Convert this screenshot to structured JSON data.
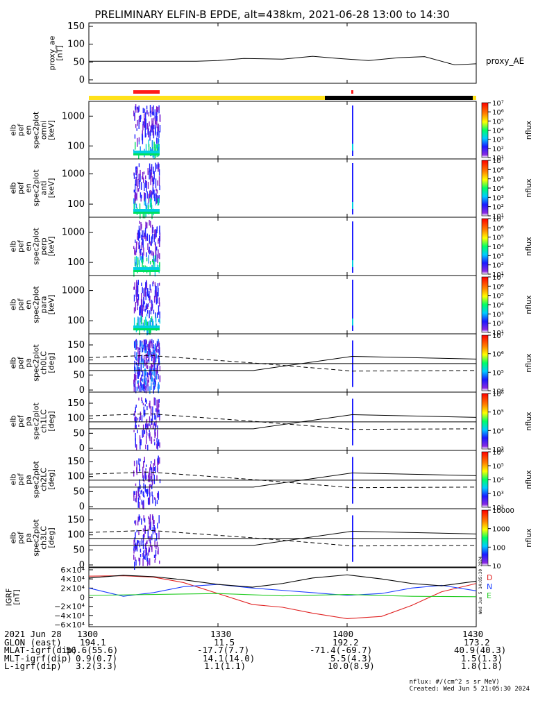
{
  "title": "PRELIMINARY ELFIN-B EPDE, alt=438km, 2021-06-28 13:00 to 14:30",
  "time_ticks": [
    "1300",
    "1330",
    "1400",
    "1430"
  ],
  "ephemeris": {
    "rows": [
      {
        "label": "2021 Jun 28",
        "values": [
          "1300",
          "1330",
          "1400",
          "1430"
        ]
      },
      {
        "label": "GLON (east)",
        "values": [
          "194.1",
          "11.5",
          "192.2",
          "173.2"
        ]
      },
      {
        "label": "MLAT-igrf(dip)",
        "values": [
          "56.6(55.6)",
          "-17.7(7.7)",
          "-71.4(-69.7)",
          "40.9(40.3)"
        ]
      },
      {
        "label": "MLT-igrf(dip)",
        "values": [
          "0.9(0.7)",
          "14.1(14.0)",
          "5.5(4.3)",
          "1.5(1.3)"
        ]
      },
      {
        "label": "L-igrf(dip)",
        "values": [
          "3.2(3.3)",
          "1.1(1.1)",
          "10.0(8.9)",
          "1.8(1.8)"
        ]
      }
    ]
  },
  "footer": {
    "units": "nflux: #/(cm^2 s sr MeV)",
    "created": "Created: Wed Jun  5 21:05:30 2024"
  },
  "side_stamp": "Wed Jun  5 14:05:30 2024",
  "colors": {
    "indicator_yellow": "#ffe11a",
    "indicator_black": "#000000",
    "indicator_red": "#ff1a1a",
    "grf_black": "#000000",
    "grf_red": "#e02020",
    "grf_blue": "#1a3cff",
    "grf_green": "#22cc22"
  },
  "chart_data": [
    {
      "type": "line",
      "ylabel": "proxy_ae [nT]",
      "ylim": [
        0,
        150
      ],
      "yticks": [
        "0",
        "50",
        "100",
        "150"
      ],
      "series": [
        {
          "name": "proxy_AE",
          "x": [
            "13:00",
            "13:15",
            "13:25",
            "13:30",
            "13:36",
            "13:45",
            "13:52",
            "13:58",
            "14:05",
            "14:12",
            "14:18",
            "14:25",
            "14:30"
          ],
          "values": [
            52,
            52,
            52,
            54,
            60,
            58,
            66,
            60,
            54,
            62,
            65,
            42,
            45
          ]
        }
      ]
    },
    {
      "type": "heatmap",
      "ylabel": "elb pef en spec2plot omni [keV]",
      "yscale": "log",
      "yticks": [
        "100",
        "1000"
      ],
      "colorbar": {
        "label": "nflux",
        "ticks": [
          "10¹",
          "10²",
          "10³",
          "10⁴",
          "10⁵",
          "10⁶",
          "10⁷"
        ]
      }
    },
    {
      "type": "heatmap",
      "ylabel": "elb pef en spec2plot anti [keV]",
      "yscale": "log",
      "yticks": [
        "100",
        "1000"
      ],
      "colorbar": {
        "label": "nflux",
        "ticks": [
          "10¹",
          "10²",
          "10³",
          "10⁴",
          "10⁵",
          "10⁶",
          "10⁷"
        ]
      }
    },
    {
      "type": "heatmap",
      "ylabel": "elb pef en spec2plot perp [keV]",
      "yscale": "log",
      "yticks": [
        "100",
        "1000"
      ],
      "colorbar": {
        "label": "nflux",
        "ticks": [
          "10¹",
          "10²",
          "10³",
          "10⁴",
          "10⁵",
          "10⁶",
          "10⁷"
        ]
      }
    },
    {
      "type": "heatmap",
      "ylabel": "elb pef en spec2plot para [keV]",
      "yscale": "log",
      "yticks": [
        "100",
        "1000"
      ],
      "colorbar": {
        "label": "nflux",
        "ticks": [
          "10¹",
          "10²",
          "10³",
          "10⁴",
          "10⁵",
          "10⁶",
          "10⁷"
        ]
      }
    },
    {
      "type": "heatmap",
      "ylabel": "elb pef pa spec2plot ch0LC [deg]",
      "ylim": [
        0,
        180
      ],
      "yticks": [
        "0",
        "50",
        "100",
        "150"
      ],
      "colorbar": {
        "label": "nflux",
        "ticks": [
          "10⁴",
          "10⁵",
          "10⁶",
          "10⁷"
        ]
      }
    },
    {
      "type": "heatmap",
      "ylabel": "elb pef pa spec2plot ch1LC [deg]",
      "ylim": [
        0,
        180
      ],
      "yticks": [
        "0",
        "50",
        "100",
        "150"
      ],
      "colorbar": {
        "label": "nflux",
        "ticks": [
          "10³",
          "10⁴",
          "10⁵",
          "10⁶"
        ]
      }
    },
    {
      "type": "heatmap",
      "ylabel": "elb pef pa spec2plot ch2LC [deg]",
      "ylim": [
        0,
        180
      ],
      "yticks": [
        "0",
        "50",
        "100",
        "150"
      ],
      "colorbar": {
        "label": "nflux",
        "ticks": [
          "10²",
          "10³",
          "10⁴",
          "10⁵",
          "10⁶"
        ]
      }
    },
    {
      "type": "heatmap",
      "ylabel": "elb pef pa spec2plot ch3LC [deg]",
      "ylim": [
        0,
        180
      ],
      "yticks": [
        "0",
        "50",
        "100",
        "150"
      ],
      "colorbar": {
        "label": "nflux",
        "ticks": [
          "10",
          "100",
          "1000",
          "10000"
        ]
      }
    },
    {
      "type": "line",
      "ylabel": "IGRF [nT]",
      "ylim": [
        -60000,
        60000
      ],
      "yticks": [
        "−6×10⁴",
        "−4×10⁴",
        "−2×10⁴",
        "0",
        "2×10⁴",
        "4×10⁴",
        "6×10⁴"
      ],
      "series": [
        {
          "name": "D",
          "color": "#e02020",
          "x": [
            "13:00",
            "13:08",
            "13:15",
            "13:22",
            "13:30",
            "13:38",
            "13:45",
            "13:52",
            "14:00",
            "14:08",
            "14:15",
            "14:22",
            "14:30"
          ],
          "values": [
            46000,
            47000,
            44000,
            32000,
            8000,
            -16000,
            -22000,
            -35000,
            -47000,
            -42000,
            -18000,
            12000,
            30000
          ]
        },
        {
          "name": "N",
          "color": "#1a3cff",
          "x": [
            "13:00",
            "13:08",
            "13:15",
            "13:22",
            "13:30",
            "13:38",
            "13:45",
            "13:52",
            "14:00",
            "14:08",
            "14:15",
            "14:22",
            "14:30"
          ],
          "values": [
            20000,
            2000,
            10000,
            23000,
            28000,
            20000,
            15000,
            10000,
            4000,
            8000,
            20000,
            26000,
            14000
          ]
        },
        {
          "name": "E",
          "color": "#22cc22",
          "x": [
            "13:00",
            "13:15",
            "13:30",
            "13:45",
            "14:00",
            "14:15",
            "14:30"
          ],
          "values": [
            4000,
            6000,
            8000,
            3000,
            6000,
            2000,
            1000
          ]
        },
        {
          "name": "",
          "color": "#000000",
          "x": [
            "13:00",
            "13:08",
            "13:15",
            "13:22",
            "13:30",
            "13:38",
            "13:45",
            "13:52",
            "14:00",
            "14:08",
            "14:15",
            "14:22",
            "14:30"
          ],
          "values": [
            42000,
            48000,
            45000,
            38000,
            28000,
            22000,
            30000,
            42000,
            49000,
            40000,
            30000,
            25000,
            35000
          ]
        }
      ]
    }
  ]
}
